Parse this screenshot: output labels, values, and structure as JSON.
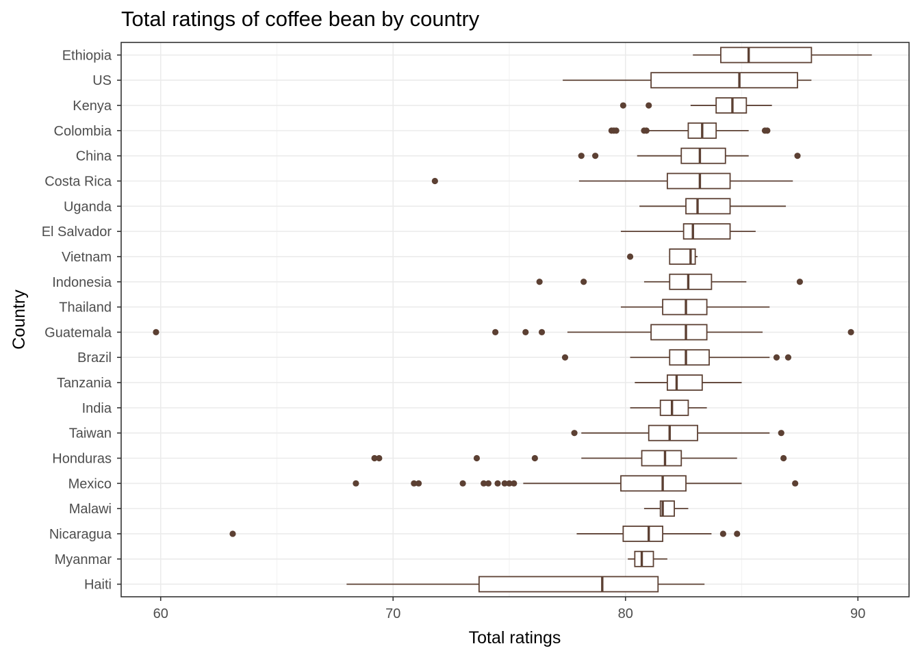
{
  "chart_data": {
    "type": "boxplot",
    "orientation": "horizontal",
    "title": "Total ratings of coffee bean by country",
    "xlabel": "Total ratings",
    "ylabel": "Country",
    "xlim": [
      58.3,
      92.2
    ],
    "x_ticks": [
      60,
      70,
      80,
      90
    ],
    "grid": true,
    "color": "#5c4033",
    "boxes": [
      {
        "category": "Ethiopia",
        "whisker_low": 82.9,
        "q1": 84.1,
        "median": 85.3,
        "q3": 88.0,
        "whisker_high": 90.6,
        "outliers": []
      },
      {
        "category": "US",
        "whisker_low": 77.3,
        "q1": 81.1,
        "median": 84.9,
        "q3": 87.4,
        "whisker_high": 88.0,
        "outliers": []
      },
      {
        "category": "Kenya",
        "whisker_low": 82.8,
        "q1": 83.9,
        "median": 84.6,
        "q3": 85.2,
        "whisker_high": 86.3,
        "outliers": [
          79.9,
          81.0
        ]
      },
      {
        "category": "Colombia",
        "whisker_low": 81.0,
        "q1": 82.7,
        "median": 83.3,
        "q3": 83.9,
        "whisker_high": 85.3,
        "outliers": [
          79.4,
          79.5,
          79.6,
          80.8,
          80.9,
          86.0,
          86.1
        ]
      },
      {
        "category": "China",
        "whisker_low": 80.5,
        "q1": 82.4,
        "median": 83.2,
        "q3": 84.3,
        "whisker_high": 85.3,
        "outliers": [
          78.1,
          78.7,
          87.4
        ]
      },
      {
        "category": "Costa Rica",
        "whisker_low": 78.0,
        "q1": 81.8,
        "median": 83.2,
        "q3": 84.5,
        "whisker_high": 87.2,
        "outliers": [
          71.8
        ]
      },
      {
        "category": "Uganda",
        "whisker_low": 80.6,
        "q1": 82.6,
        "median": 83.1,
        "q3": 84.5,
        "whisker_high": 86.9,
        "outliers": []
      },
      {
        "category": "El Salvador",
        "whisker_low": 79.8,
        "q1": 82.5,
        "median": 82.9,
        "q3": 84.5,
        "whisker_high": 85.6,
        "outliers": []
      },
      {
        "category": "Vietnam",
        "whisker_low": 81.9,
        "q1": 81.9,
        "median": 82.8,
        "q3": 83.0,
        "whisker_high": 83.1,
        "outliers": [
          80.2
        ]
      },
      {
        "category": "Indonesia",
        "whisker_low": 80.8,
        "q1": 81.9,
        "median": 82.7,
        "q3": 83.7,
        "whisker_high": 85.2,
        "outliers": [
          76.3,
          78.2,
          87.5
        ]
      },
      {
        "category": "Thailand",
        "whisker_low": 79.8,
        "q1": 81.6,
        "median": 82.6,
        "q3": 83.5,
        "whisker_high": 86.2,
        "outliers": []
      },
      {
        "category": "Guatemala",
        "whisker_low": 77.5,
        "q1": 81.1,
        "median": 82.6,
        "q3": 83.5,
        "whisker_high": 85.9,
        "outliers": [
          59.8,
          74.4,
          75.7,
          76.4,
          89.7
        ]
      },
      {
        "category": "Brazil",
        "whisker_low": 80.2,
        "q1": 81.9,
        "median": 82.6,
        "q3": 83.6,
        "whisker_high": 86.2,
        "outliers": [
          77.4,
          86.5,
          87.0
        ]
      },
      {
        "category": "Tanzania",
        "whisker_low": 80.4,
        "q1": 81.8,
        "median": 82.2,
        "q3": 83.3,
        "whisker_high": 85.0,
        "outliers": []
      },
      {
        "category": "India",
        "whisker_low": 80.2,
        "q1": 81.5,
        "median": 82.0,
        "q3": 82.7,
        "whisker_high": 83.5,
        "outliers": []
      },
      {
        "category": "Taiwan",
        "whisker_low": 78.1,
        "q1": 81.0,
        "median": 81.9,
        "q3": 83.1,
        "whisker_high": 86.2,
        "outliers": [
          77.8,
          86.7
        ]
      },
      {
        "category": "Honduras",
        "whisker_low": 78.1,
        "q1": 80.7,
        "median": 81.7,
        "q3": 82.4,
        "whisker_high": 84.8,
        "outliers": [
          69.2,
          69.4,
          73.6,
          76.1,
          86.8
        ]
      },
      {
        "category": "Mexico",
        "whisker_low": 75.6,
        "q1": 79.8,
        "median": 81.6,
        "q3": 82.6,
        "whisker_high": 85.0,
        "outliers": [
          68.4,
          70.9,
          71.1,
          73.0,
          73.9,
          74.1,
          74.5,
          74.8,
          75.0,
          75.2,
          87.3
        ]
      },
      {
        "category": "Malawi",
        "whisker_low": 80.8,
        "q1": 81.5,
        "median": 81.6,
        "q3": 82.1,
        "whisker_high": 82.7,
        "outliers": []
      },
      {
        "category": "Nicaragua",
        "whisker_low": 77.9,
        "q1": 79.9,
        "median": 81.0,
        "q3": 81.6,
        "whisker_high": 83.7,
        "outliers": [
          63.1,
          84.2,
          84.8
        ]
      },
      {
        "category": "Myanmar",
        "whisker_low": 80.1,
        "q1": 80.4,
        "median": 80.7,
        "q3": 81.2,
        "whisker_high": 81.8,
        "outliers": []
      },
      {
        "category": "Haiti",
        "whisker_low": 68.0,
        "q1": 73.7,
        "median": 79.0,
        "q3": 81.4,
        "whisker_high": 83.4,
        "outliers": []
      }
    ]
  }
}
